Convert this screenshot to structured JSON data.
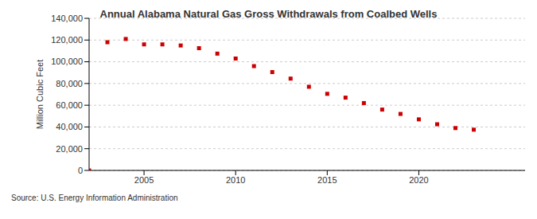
{
  "chart_data": {
    "type": "scatter",
    "title": "Annual Alabama Natural Gas Gross Withdrawals from Coalbed Wells",
    "y_label": "Million Cubic Feet",
    "source": "Source: U.S. Energy Information Administration",
    "x": [
      2002,
      2003,
      2004,
      2005,
      2006,
      2007,
      2008,
      2009,
      2010,
      2011,
      2012,
      2013,
      2014,
      2015,
      2016,
      2017,
      2018,
      2019,
      2020,
      2021,
      2022,
      2023
    ],
    "values": [
      0,
      118000,
      121000,
      116000,
      116000,
      115000,
      112500,
      107500,
      103000,
      96000,
      90500,
      84500,
      77000,
      70500,
      67000,
      62000,
      56000,
      52000,
      47000,
      42500,
      39000,
      37500
    ],
    "color": "#cc0000",
    "marker": "square",
    "xlim": [
      2002,
      2025.8
    ],
    "xticks": [
      2005,
      2010,
      2015,
      2020
    ],
    "ylim": [
      0,
      140000
    ],
    "yticks": [
      0,
      {
        "value": 20000,
        "label": "20,000"
      },
      {
        "value": 40000,
        "label": "40,000"
      },
      {
        "value": 60000,
        "label": "60,000"
      },
      {
        "value": 80000,
        "label": "80,000"
      },
      {
        "value": 100000,
        "label": "100,000"
      },
      {
        "value": 120000,
        "label": "120,000"
      },
      {
        "value": 140000,
        "label": "140,000"
      }
    ],
    "grid": true
  }
}
